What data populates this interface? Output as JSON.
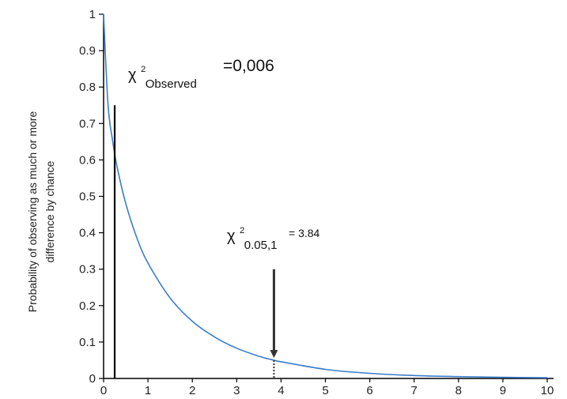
{
  "chart_data": {
    "type": "line",
    "title": "",
    "xlabel": "",
    "ylabel_lines": [
      "Probability of observing as much or more",
      "difference by chance"
    ],
    "xlim": [
      0,
      10
    ],
    "ylim": [
      0,
      1
    ],
    "x_ticks": [
      0,
      1,
      2,
      3,
      4,
      5,
      6,
      7,
      8,
      9,
      10
    ],
    "y_ticks": [
      0,
      0.1,
      0.2,
      0.3,
      0.4,
      0.5,
      0.6,
      0.7,
      0.8,
      0.9,
      1
    ],
    "y_tick_labels": [
      "0",
      "0.1",
      "0.2",
      "0.3",
      "0.4",
      "0.5",
      "0.6",
      "0.7",
      "0.8",
      "0.9",
      "1"
    ],
    "grid": false,
    "series": [
      {
        "color": "#3a7dc9",
        "x": [
          0,
          0.1,
          0.2,
          0.3,
          0.5,
          0.75,
          1,
          1.5,
          2,
          2.5,
          3,
          3.5,
          3.84,
          4,
          5,
          6,
          7,
          8,
          9,
          10
        ],
        "y": [
          1.0,
          0.752,
          0.655,
          0.584,
          0.48,
          0.386,
          0.317,
          0.221,
          0.157,
          0.114,
          0.083,
          0.061,
          0.05,
          0.046,
          0.025,
          0.014,
          0.008,
          0.005,
          0.003,
          0.002
        ]
      }
    ],
    "annotations": {
      "observed": {
        "chi": "χ",
        "sup": "2",
        "sub": "Observed",
        "value_text": "=0,006",
        "line_x": 0.25,
        "line_top_y": 0.75,
        "line_color": "#000000"
      },
      "critical": {
        "chi": "χ",
        "sup": "2",
        "sub": "0.05,1",
        "value_text": "= 3.84",
        "x": 3.84,
        "arrow_from_y": 0.3,
        "arrow_to_y": 0.05,
        "arrow_color": "#333333"
      }
    }
  }
}
